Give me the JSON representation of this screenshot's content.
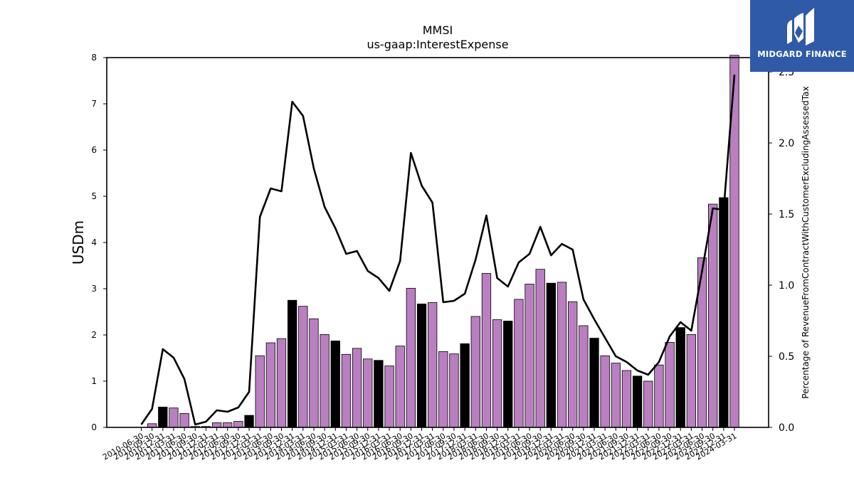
{
  "branding": {
    "logo_text": "MIDGARD FINANCE",
    "logo_bg": "#2f5aa8"
  },
  "chart_data": {
    "type": "bar",
    "title": "MMSI",
    "subtitle": "us-gaap:InterestExpense",
    "ylabel": "USDm",
    "y2label": "Percentage of RevenueFromContractWithCustomerExcludingAssessedTax",
    "ylim": [
      0,
      8
    ],
    "y2lim": [
      0,
      2.6
    ],
    "yticks": [
      0,
      1,
      2,
      3,
      4,
      5,
      6,
      7,
      8
    ],
    "y2ticks": [
      "0.0",
      "0.5",
      "1.0",
      "1.5",
      "2.0",
      "2.5"
    ],
    "categories": [
      "2010-06-30",
      "2010-09-30",
      "2010-12-31",
      "2011-03-31",
      "2011-06-30",
      "2011-09-30",
      "2011-12-31",
      "2012-03-31",
      "2012-06-30",
      "2012-09-30",
      "2012-12-31",
      "2013-03-31",
      "2013-06-30",
      "2013-09-30",
      "2013-12-31",
      "2014-03-31",
      "2014-06-30",
      "2014-09-30",
      "2014-12-31",
      "2015-03-31",
      "2015-06-30",
      "2015-09-30",
      "2015-12-31",
      "2016-03-31",
      "2016-06-30",
      "2016-09-30",
      "2016-12-31",
      "2017-03-31",
      "2017-06-30",
      "2017-09-30",
      "2017-12-31",
      "2018-03-31",
      "2018-06-30",
      "2018-09-30",
      "2018-12-31",
      "2019-03-31",
      "2019-06-30",
      "2019-09-30",
      "2019-12-31",
      "2020-03-31",
      "2020-06-30",
      "2020-09-30",
      "2020-12-31",
      "2021-03-31",
      "2021-06-30",
      "2021-09-30",
      "2021-12-31",
      "2022-03-31",
      "2022-06-30",
      "2022-09-30",
      "2022-12-31",
      "2023-03-31",
      "2023-06-30",
      "2023-09-30",
      "2023-12-31",
      "2024-03-31"
    ],
    "series": [
      {
        "kind": "bar",
        "axis": "left",
        "values": [
          0.0,
          0.08,
          0.44,
          0.42,
          0.3,
          0.02,
          0.02,
          0.1,
          0.1,
          0.13,
          0.26,
          1.55,
          1.83,
          1.92,
          2.75,
          2.62,
          2.35,
          2.01,
          1.87,
          1.58,
          1.71,
          1.48,
          1.45,
          1.33,
          1.76,
          3.01,
          2.67,
          2.7,
          1.64,
          1.59,
          1.81,
          2.4,
          3.33,
          2.33,
          2.3,
          2.77,
          3.1,
          3.42,
          3.12,
          3.14,
          2.72,
          2.2,
          1.93,
          1.55,
          1.39,
          1.23,
          1.11,
          1.0,
          1.35,
          1.84,
          2.16,
          2.01,
          3.67,
          4.83,
          4.97,
          8.05
        ],
        "highlight": [
          false,
          false,
          true,
          false,
          false,
          false,
          false,
          false,
          false,
          false,
          true,
          false,
          false,
          false,
          true,
          false,
          false,
          false,
          true,
          false,
          false,
          false,
          true,
          false,
          false,
          false,
          true,
          false,
          false,
          false,
          true,
          false,
          false,
          false,
          true,
          false,
          false,
          false,
          true,
          false,
          false,
          false,
          true,
          false,
          false,
          false,
          true,
          false,
          false,
          false,
          true,
          false,
          false,
          false,
          true,
          false
        ],
        "color": "#b97fc0",
        "highlight_color": "#000000"
      },
      {
        "kind": "line",
        "axis": "right",
        "values": [
          0.02,
          0.13,
          0.55,
          0.49,
          0.34,
          0.02,
          0.04,
          0.12,
          0.11,
          0.14,
          0.25,
          1.48,
          1.68,
          1.66,
          2.29,
          2.19,
          1.82,
          1.55,
          1.4,
          1.22,
          1.24,
          1.1,
          1.05,
          0.96,
          1.17,
          1.93,
          1.7,
          1.58,
          0.88,
          0.89,
          0.94,
          1.18,
          1.49,
          1.05,
          0.99,
          1.16,
          1.22,
          1.41,
          1.21,
          1.29,
          1.25,
          0.9,
          0.76,
          0.63,
          0.5,
          0.46,
          0.4,
          0.37,
          0.46,
          0.64,
          0.74,
          0.68,
          1.1,
          1.54,
          1.53,
          2.48
        ],
        "color": "#000000"
      }
    ],
    "grid": false,
    "legend": "none"
  }
}
